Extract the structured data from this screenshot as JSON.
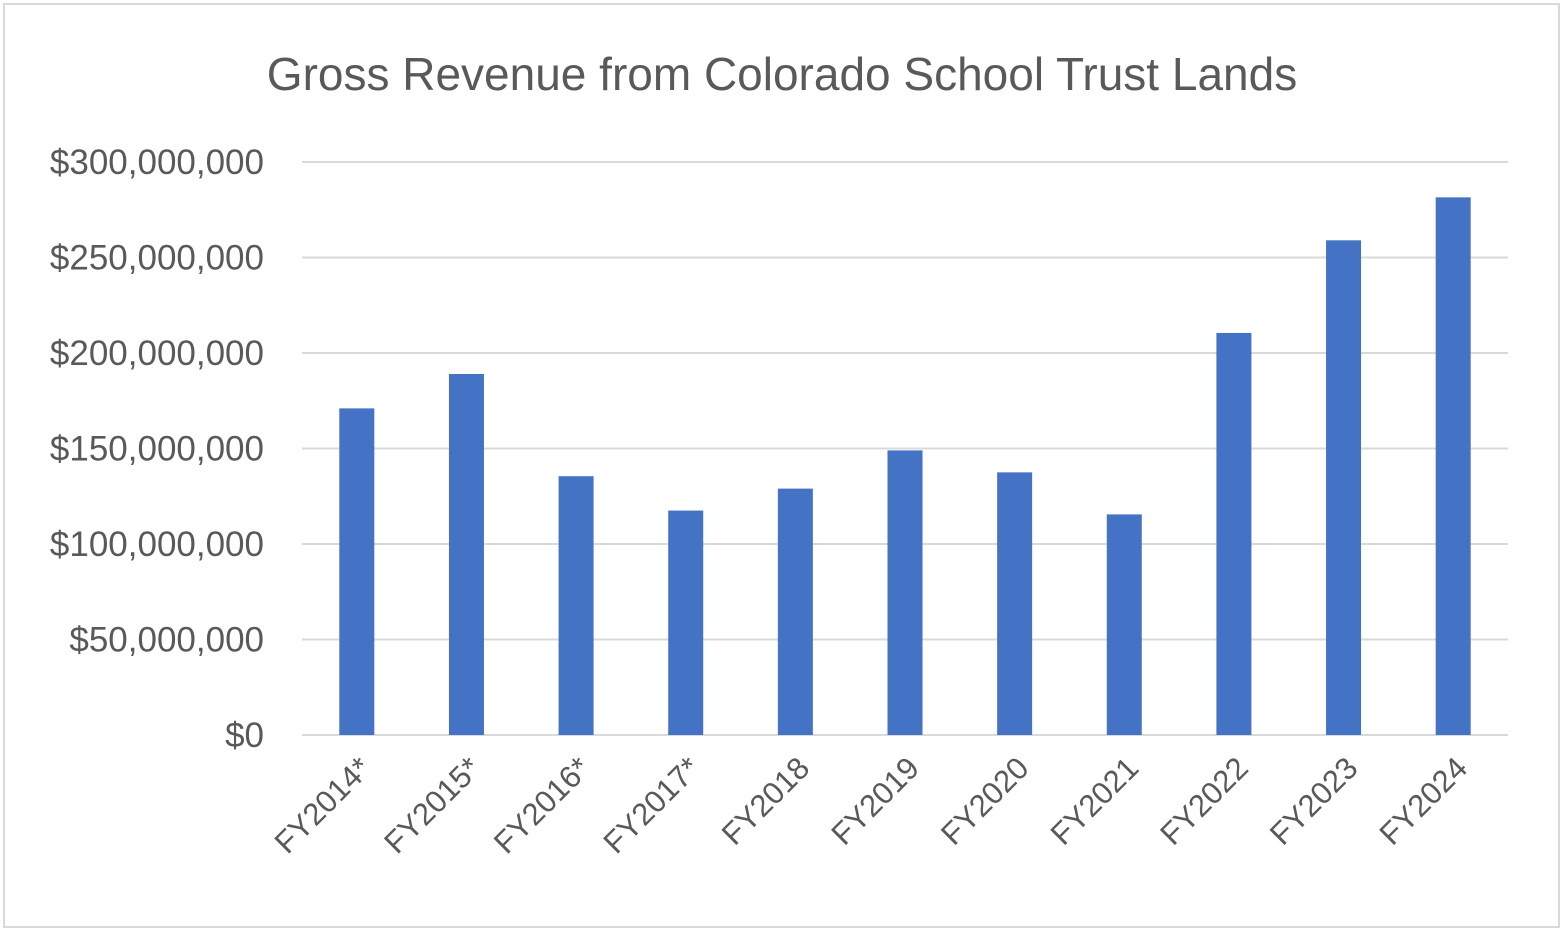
{
  "chart_data": {
    "type": "bar",
    "title": "Gross Revenue from Colorado School Trust Lands",
    "xlabel": "",
    "ylabel": "",
    "categories": [
      "FY2014*",
      "FY2015*",
      "FY2016*",
      "FY2017*",
      "FY2018",
      "FY2019",
      "FY2020",
      "FY2021",
      "FY2022",
      "FY2023",
      "FY2024"
    ],
    "values": [
      171000000,
      189000000,
      135500000,
      117500000,
      129000000,
      149000000,
      137500000,
      115500000,
      210500000,
      259000000,
      281500000
    ],
    "ylim": [
      0,
      300000000
    ],
    "yticks": [
      0,
      50000000,
      100000000,
      150000000,
      200000000,
      250000000,
      300000000
    ],
    "ytick_labels": [
      "$0",
      "$50,000,000",
      "$100,000,000",
      "$150,000,000",
      "$200,000,000",
      "$250,000,000",
      "$300,000,000"
    ],
    "grid": true,
    "legend": "none",
    "bar_color": "#4472C4"
  }
}
